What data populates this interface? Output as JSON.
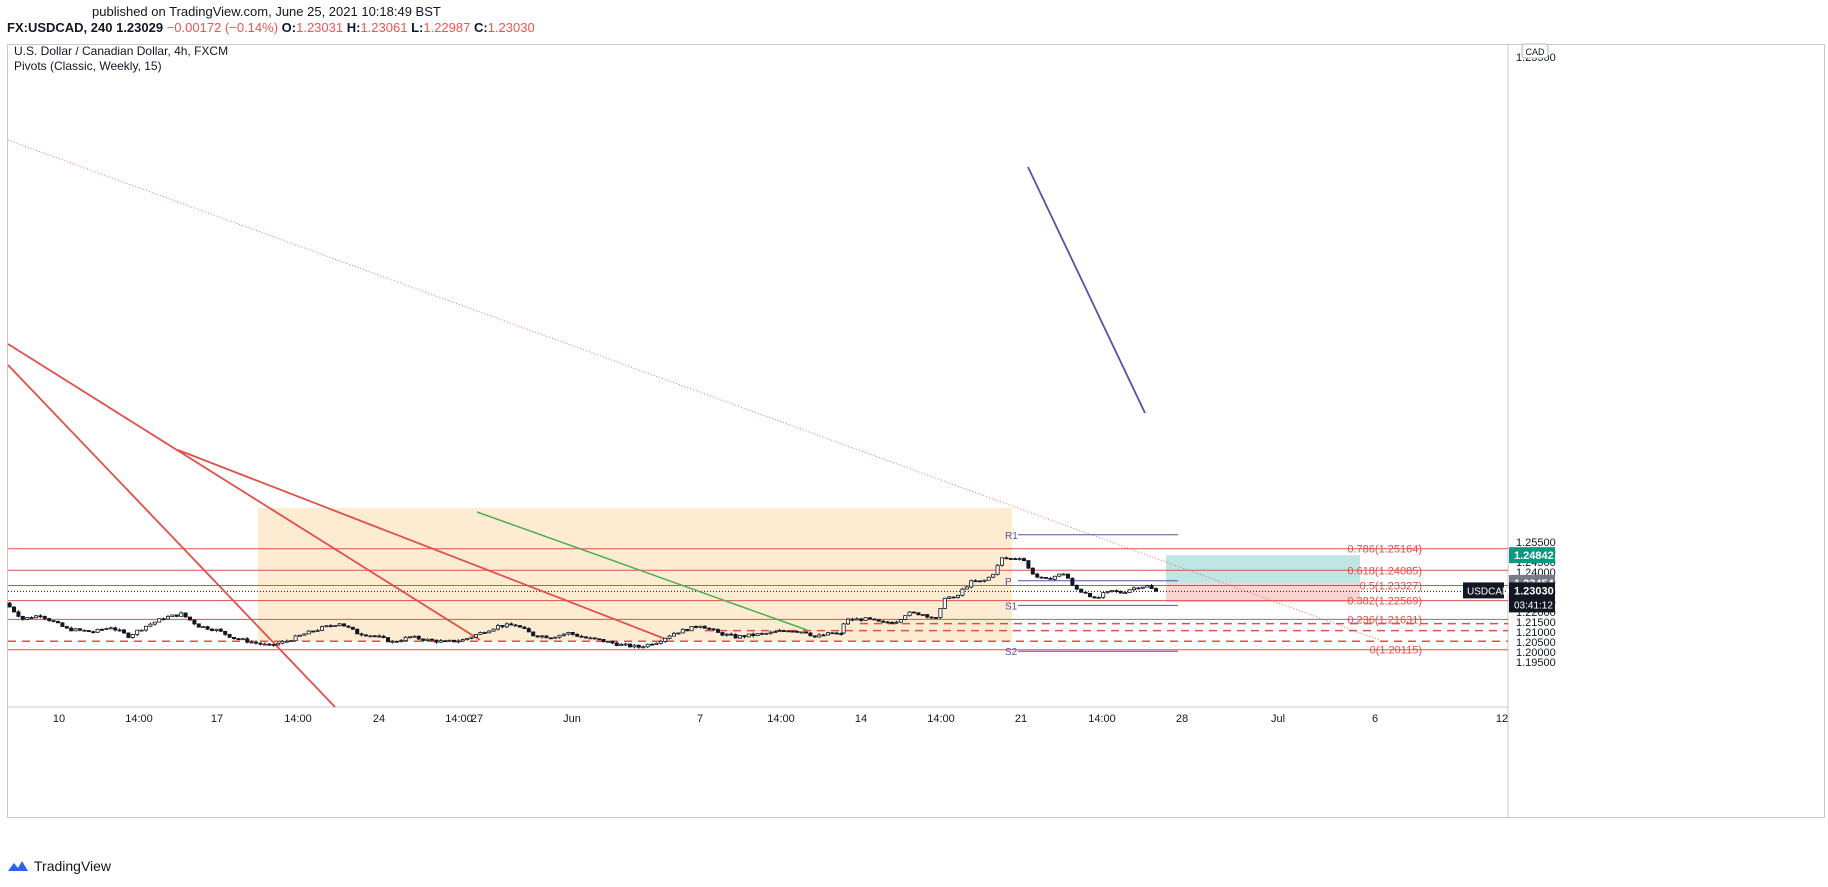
{
  "header": {
    "published": "published on TradingView.com, June 25, 2021 10:18:49 BST",
    "symbol": "FX:USDCAD, 240",
    "last": "1.23029",
    "change": "−0.00172 (−0.14%)",
    "o_label": "O:",
    "o": "1.23031",
    "h_label": "H:",
    "h": "1.23061",
    "l_label": "L:",
    "l": "1.22987",
    "c_label": "C:",
    "c": "1.23030"
  },
  "chart": {
    "title": "U.S. Dollar / Canadian Dollar, 4h, FXCM",
    "indicator": "Pivots (Classic, Weekly, 15)",
    "currency_badge": "CAD"
  },
  "footer": {
    "brand": "TradingView"
  },
  "colors": {
    "up": "#ffffff",
    "down": "#131722",
    "fib": "#e0504a",
    "pivot": "#5b4fa8",
    "green_line": "#4caf50",
    "zone": "#fdebd2",
    "tp": "#bfe6e3",
    "sl": "#fbd3d3",
    "badge_green": "#089981",
    "badge_red": "#e0504a",
    "badge_grey": "#787b86",
    "badge_dark": "#131722"
  },
  "chart_data": {
    "type": "candlestick",
    "ylim": [
      1.195,
      1.2565
    ],
    "y_ticks": [
      "1.19500",
      "1.20000",
      "1.20500",
      "1.21000",
      "1.21500",
      "1.22000",
      "1.22500",
      "1.23000",
      "1.23500",
      "1.24000",
      "1.24500",
      "1.25000",
      "1.25500",
      "1.25500"
    ],
    "x_ticks": [
      "10",
      "14:00",
      "17",
      "14:00",
      "24",
      "14:00",
      "27",
      "Jun",
      "7",
      "14:00",
      "14",
      "14:00",
      "21",
      "14:00",
      "28",
      "Jul",
      "6",
      "12"
    ],
    "candle_count": 192,
    "fib_levels": [
      {
        "label": "0.786(1.25164)",
        "value": 1.25164
      },
      {
        "label": "0.618(1.24085)",
        "value": 1.24085
      },
      {
        "label": "0.5(1.23327)",
        "value": 1.23327
      },
      {
        "label": "0.382(1.22569)",
        "value": 1.22569
      },
      {
        "label": "0.236(1.21631)",
        "value": 1.21631
      },
      {
        "label": "0(1.20115)",
        "value": 1.20115
      }
    ],
    "pivots": [
      {
        "label": "R1",
        "value": 1.2586
      },
      {
        "label": "P",
        "value": 1.2356
      },
      {
        "label": "S1",
        "value": 1.2233
      },
      {
        "label": "S2",
        "value": 1.2004
      }
    ],
    "horizontal_dashed": [
      {
        "label": "1.21418",
        "value": 1.21418
      },
      {
        "label": "1.21066",
        "value": 1.21066
      },
      {
        "label": "1.20540",
        "value": 1.2054
      }
    ],
    "position": {
      "entry": 1.23454,
      "target": 1.24842,
      "stop": 1.22494
    },
    "price_badges": [
      {
        "label": "1.24842",
        "value": 1.24842,
        "kind": "green"
      },
      {
        "label": "1.23454",
        "value": 1.23454,
        "kind": "grey"
      },
      {
        "label": "1.22494",
        "value": 1.22494,
        "kind": "red"
      }
    ],
    "current": {
      "symbol": "USDCAD",
      "price": "1.23030",
      "timer": "03:41:12",
      "value": 1.2303
    }
  }
}
